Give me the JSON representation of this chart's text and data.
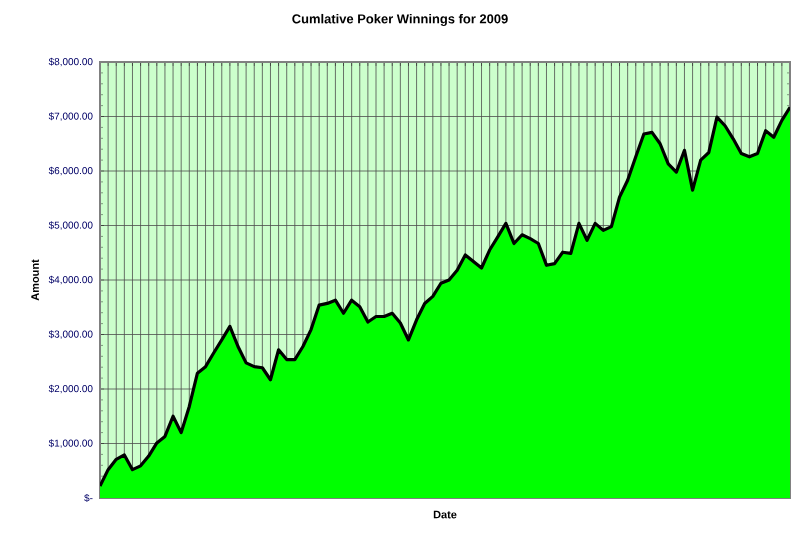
{
  "chart_data": {
    "type": "area",
    "title": "Cumlative Poker Winnings for 2009",
    "xlabel": "Date",
    "ylabel": "Amount",
    "categories": [
      null,
      null,
      null,
      null,
      null,
      null,
      null,
      null,
      null,
      null,
      null,
      null,
      null,
      null,
      null,
      null,
      null,
      null,
      null,
      null,
      null,
      null,
      null,
      null,
      null,
      null,
      null,
      null,
      null,
      null,
      null,
      null,
      null,
      null,
      null,
      null,
      null,
      null,
      null,
      null,
      null,
      null,
      null,
      null,
      null,
      null,
      null,
      null,
      null,
      null,
      null,
      null,
      null,
      null,
      null,
      null,
      null,
      null,
      null,
      null,
      null,
      null,
      null,
      null,
      null,
      null,
      null,
      null,
      null,
      null,
      null,
      null,
      null,
      null,
      null,
      null,
      null,
      null,
      null,
      null,
      null,
      null,
      null,
      null,
      null,
      null
    ],
    "values": [
      220,
      520,
      710,
      790,
      520,
      590,
      770,
      1010,
      1130,
      1500,
      1200,
      1680,
      2290,
      2410,
      2660,
      2900,
      3150,
      2780,
      2480,
      2410,
      2390,
      2170,
      2720,
      2540,
      2540,
      2780,
      3090,
      3540,
      3570,
      3630,
      3390,
      3630,
      3510,
      3230,
      3330,
      3330,
      3390,
      3210,
      2900,
      3270,
      3570,
      3700,
      3940,
      4000,
      4180,
      4460,
      4340,
      4220,
      4550,
      4790,
      5040,
      4670,
      4830,
      4760,
      4670,
      4270,
      4300,
      4510,
      4490,
      5040,
      4730,
      5040,
      4910,
      4980,
      5520,
      5830,
      6260,
      6680,
      6710,
      6500,
      6130,
      5980,
      6380,
      5650,
      6200,
      6340,
      6990,
      6830,
      6590,
      6320,
      6260,
      6320,
      6740,
      6620,
      6930,
      7170
    ],
    "color": "#00ff00",
    "ylim": [
      0,
      8000
    ],
    "yticks": [
      {
        "value": 0,
        "label": "$-"
      },
      {
        "value": 1000,
        "label": "$1,000.00"
      },
      {
        "value": 2000,
        "label": "$2,000.00"
      },
      {
        "value": 3000,
        "label": "$3,000.00"
      },
      {
        "value": 4000,
        "label": "$4,000.00"
      },
      {
        "value": 5000,
        "label": "$5,000.00"
      },
      {
        "value": 6000,
        "label": "$6,000.00"
      },
      {
        "value": 7000,
        "label": "$7,000.00"
      },
      {
        "value": 8000,
        "label": "$8,000.00"
      }
    ],
    "grid": true
  }
}
